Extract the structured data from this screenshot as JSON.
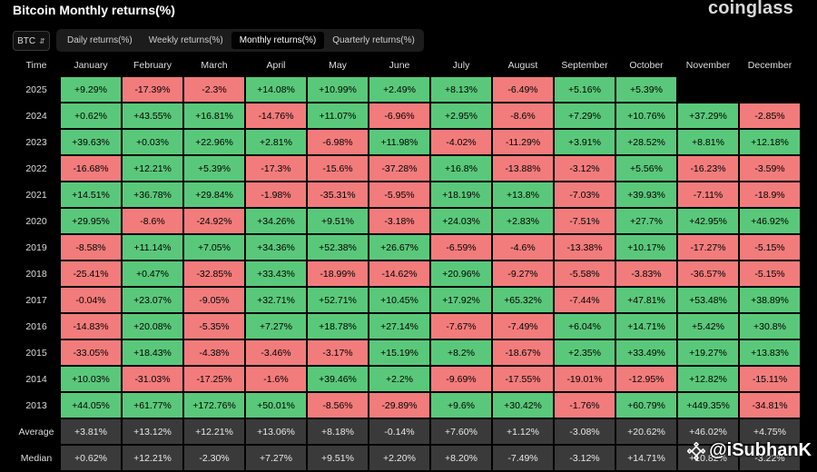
{
  "title": "Bitcoin Monthly returns(%)",
  "brand": "coinglass",
  "asset_selector": "BTC",
  "tabs": [
    {
      "label": "Daily returns(%)",
      "active": false
    },
    {
      "label": "Weekly returns(%)",
      "active": false
    },
    {
      "label": "Monthly returns(%)",
      "active": true
    },
    {
      "label": "Quarterly returns(%)",
      "active": false
    }
  ],
  "columns": [
    "Time",
    "January",
    "February",
    "March",
    "April",
    "May",
    "June",
    "July",
    "August",
    "September",
    "October",
    "November",
    "December"
  ],
  "rows": [
    {
      "year": "2025",
      "values": [
        "+9.29%",
        "-17.39%",
        "-2.3%",
        "+14.08%",
        "+10.99%",
        "+2.49%",
        "+8.13%",
        "-6.49%",
        "+5.16%",
        "+5.39%",
        "",
        ""
      ]
    },
    {
      "year": "2024",
      "values": [
        "+0.62%",
        "+43.55%",
        "+16.81%",
        "-14.76%",
        "+11.07%",
        "-6.96%",
        "+2.95%",
        "-8.6%",
        "+7.29%",
        "+10.76%",
        "+37.29%",
        "-2.85%"
      ]
    },
    {
      "year": "2023",
      "values": [
        "+39.63%",
        "+0.03%",
        "+22.96%",
        "+2.81%",
        "-6.98%",
        "+11.98%",
        "-4.02%",
        "-11.29%",
        "+3.91%",
        "+28.52%",
        "+8.81%",
        "+12.18%"
      ]
    },
    {
      "year": "2022",
      "values": [
        "-16.68%",
        "+12.21%",
        "+5.39%",
        "-17.3%",
        "-15.6%",
        "-37.28%",
        "+16.8%",
        "-13.88%",
        "-3.12%",
        "+5.56%",
        "-16.23%",
        "-3.59%"
      ]
    },
    {
      "year": "2021",
      "values": [
        "+14.51%",
        "+36.78%",
        "+29.84%",
        "-1.98%",
        "-35.31%",
        "-5.95%",
        "+18.19%",
        "+13.8%",
        "-7.03%",
        "+39.93%",
        "-7.11%",
        "-18.9%"
      ]
    },
    {
      "year": "2020",
      "values": [
        "+29.95%",
        "-8.6%",
        "-24.92%",
        "+34.26%",
        "+9.51%",
        "-3.18%",
        "+24.03%",
        "+2.83%",
        "-7.51%",
        "+27.7%",
        "+42.95%",
        "+46.92%"
      ]
    },
    {
      "year": "2019",
      "values": [
        "-8.58%",
        "+11.14%",
        "+7.05%",
        "+34.36%",
        "+52.38%",
        "+26.67%",
        "-6.59%",
        "-4.6%",
        "-13.38%",
        "+10.17%",
        "-17.27%",
        "-5.15%"
      ]
    },
    {
      "year": "2018",
      "values": [
        "-25.41%",
        "+0.47%",
        "-32.85%",
        "+33.43%",
        "-18.99%",
        "-14.62%",
        "+20.96%",
        "-9.27%",
        "-5.58%",
        "-3.83%",
        "-36.57%",
        "-5.15%"
      ]
    },
    {
      "year": "2017",
      "values": [
        "-0.04%",
        "+23.07%",
        "-9.05%",
        "+32.71%",
        "+52.71%",
        "+10.45%",
        "+17.92%",
        "+65.32%",
        "-7.44%",
        "+47.81%",
        "+53.48%",
        "+38.89%"
      ]
    },
    {
      "year": "2016",
      "values": [
        "-14.83%",
        "+20.08%",
        "-5.35%",
        "+7.27%",
        "+18.78%",
        "+27.14%",
        "-7.67%",
        "-7.49%",
        "+6.04%",
        "+14.71%",
        "+5.42%",
        "+30.8%"
      ]
    },
    {
      "year": "2015",
      "values": [
        "-33.05%",
        "+18.43%",
        "-4.38%",
        "-3.46%",
        "-3.17%",
        "+15.19%",
        "+8.2%",
        "-18.67%",
        "+2.35%",
        "+33.49%",
        "+19.27%",
        "+13.83%"
      ]
    },
    {
      "year": "2014",
      "values": [
        "+10.03%",
        "-31.03%",
        "-17.25%",
        "-1.6%",
        "+39.46%",
        "+2.2%",
        "-9.69%",
        "-17.55%",
        "-19.01%",
        "-12.95%",
        "+12.82%",
        "-15.11%"
      ]
    },
    {
      "year": "2013",
      "values": [
        "+44.05%",
        "+61.77%",
        "+172.76%",
        "+50.01%",
        "-8.56%",
        "-29.89%",
        "+9.6%",
        "+30.42%",
        "-1.76%",
        "+60.79%",
        "+449.35%",
        "-34.81%"
      ]
    }
  ],
  "stats": [
    {
      "label": "Average",
      "values": [
        "+3.81%",
        "+13.12%",
        "+12.21%",
        "+13.06%",
        "+8.18%",
        "-0.14%",
        "+7.60%",
        "+1.12%",
        "-3.08%",
        "+20.62%",
        "+46.02%",
        "+4.75%"
      ]
    },
    {
      "label": "Median",
      "values": [
        "+0.62%",
        "+12.21%",
        "-2.30%",
        "+7.27%",
        "+9.51%",
        "+2.20%",
        "+8.20%",
        "-7.49%",
        "-3.12%",
        "+14.71%",
        "+10.82%",
        "-3.22%"
      ]
    }
  ],
  "colors": {
    "positive": "#5ac87a",
    "negative": "#f27c7c",
    "stat_bg": "#3a3a3a"
  },
  "watermark": "@iSubhanK"
}
